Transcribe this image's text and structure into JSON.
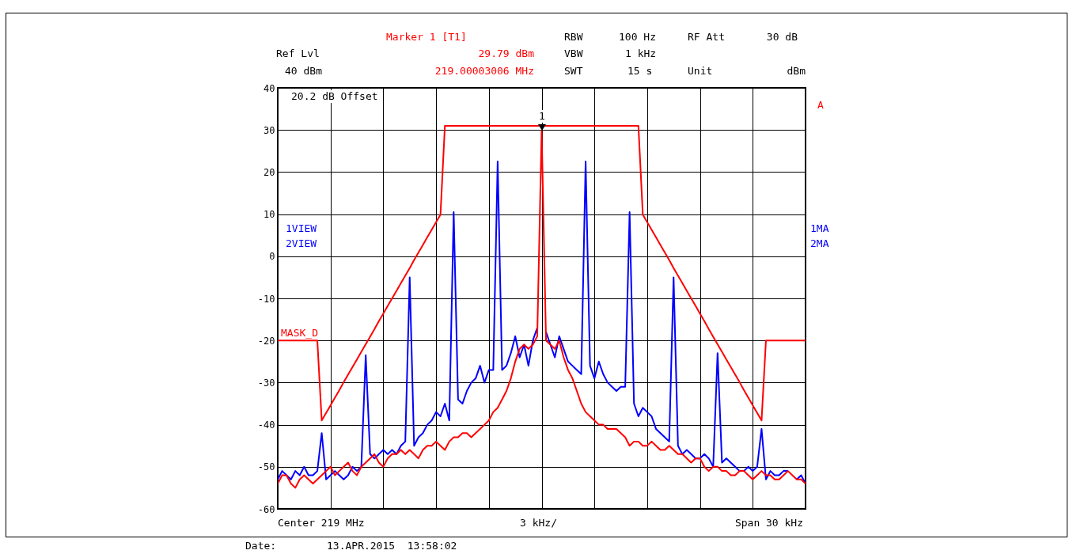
{
  "chart_data": {
    "type": "line",
    "ylim": [
      -60,
      40
    ],
    "categories": [
      null,
      null,
      null,
      null,
      null,
      null,
      null,
      null,
      null,
      null,
      null,
      null,
      null,
      null,
      null,
      null,
      null,
      null,
      null,
      null,
      null,
      null,
      null,
      null,
      null,
      null,
      null,
      null,
      null,
      null,
      null,
      null,
      null,
      null,
      null,
      null,
      null,
      null,
      null,
      null,
      null,
      null,
      null,
      null,
      null,
      null,
      null,
      null,
      null,
      null,
      null,
      null,
      null,
      null,
      null,
      null,
      null,
      null,
      null,
      null,
      null,
      null,
      null,
      null,
      null,
      null,
      null,
      null,
      null,
      null,
      null,
      null,
      null,
      null,
      null,
      null,
      null,
      null,
      null,
      null,
      null,
      null,
      null,
      null,
      null,
      null,
      null,
      null,
      null,
      null,
      null,
      null,
      null,
      null,
      null,
      null,
      null,
      null,
      null,
      null,
      null,
      null,
      null,
      null,
      null,
      null,
      null,
      null,
      null,
      null,
      null,
      null,
      null,
      null,
      null,
      null,
      null,
      null,
      null,
      null,
      null
    ],
    "yticks": [
      -60,
      -50,
      -40,
      -30,
      -20,
      -10,
      0,
      10,
      20,
      30,
      40
    ],
    "tick_labels": "y",
    "grid": true,
    "series": [
      {
        "color": "#0000ff",
        "values": [
          -53,
          -51,
          -52,
          -53,
          -51,
          -52,
          -50,
          -52,
          -52,
          -51,
          -42,
          -53,
          -52,
          -51,
          -52,
          -53,
          -52,
          -50,
          -51,
          -50,
          -23.5,
          -47,
          -48,
          -47,
          -46,
          -47,
          -46,
          -47,
          -45,
          -44,
          -5,
          -45,
          -43,
          -42,
          -40,
          -39,
          -37,
          -38,
          -35,
          -39,
          10.5,
          -34,
          -35,
          -32,
          -30,
          -29,
          -26,
          -30,
          -27,
          -27,
          22.5,
          -27,
          -26,
          -23,
          -19,
          -24,
          -21,
          -26,
          -20,
          -17,
          null,
          -18,
          -21,
          -24,
          -19,
          -22,
          -25,
          -26,
          -27,
          -28,
          22.5,
          -26,
          -29,
          -25,
          -28,
          -30,
          -31,
          -32,
          -31,
          -31,
          10.5,
          -35,
          -38,
          -36,
          -37,
          -38,
          -41,
          -42,
          -43,
          -44,
          -5,
          -45,
          -47,
          -46,
          -47,
          -48,
          -48,
          -47,
          -48,
          -50,
          -23,
          -49,
          -48,
          -49,
          -50,
          -51,
          -51,
          -50,
          -51,
          -50,
          -41,
          -53,
          -51,
          -52,
          -52,
          -51,
          -51,
          null,
          -53,
          -52,
          -54
        ]
      },
      {
        "color": "#ff0000",
        "values": [
          -54,
          -52,
          -52,
          -54,
          -55,
          -53,
          -52,
          -53,
          -54,
          -53,
          -52,
          -51,
          -50,
          -52,
          -51,
          -50,
          -49,
          -51,
          -52,
          -50,
          -49,
          -48,
          -47,
          -49,
          -50,
          -48,
          -47,
          -47,
          -46,
          -47,
          -46,
          -47,
          -48,
          -46,
          -45,
          -45,
          -44,
          -45,
          -46,
          -44,
          -43,
          -43,
          -42,
          -42,
          -43,
          -42,
          -41,
          -40,
          -39,
          -37,
          -36,
          -34,
          -32,
          -29,
          -25,
          -22,
          -21,
          -22,
          -21,
          -19,
          29.79,
          -20,
          -21,
          -22,
          -20,
          -24,
          -27,
          -29,
          -32,
          -35,
          -37,
          -38,
          -39,
          -40,
          -40,
          -41,
          -41,
          -41,
          -42,
          -43,
          -45,
          -44,
          -44,
          -45,
          -45,
          -44,
          -45,
          -46,
          -46,
          -45,
          -46,
          -47,
          -47,
          -48,
          -49,
          -48,
          -48,
          -50,
          -51,
          -50,
          -50,
          -51,
          -51,
          -52,
          -52,
          -51,
          -51,
          -52,
          -53,
          -52,
          -51,
          -52,
          -52,
          -53,
          -53,
          -52,
          -51,
          -52,
          -53,
          -53,
          -54
        ]
      },
      {
        "name": "MASK_D",
        "color": "#ff0000",
        "values": [
          -20,
          -20,
          -20,
          -20,
          -20,
          -20,
          -20,
          -20,
          -20,
          -20,
          -39,
          -37.2,
          -35.4,
          -33.6,
          -31.8,
          -29.9,
          -28.1,
          -26.3,
          -24.5,
          -22.7,
          -20.9,
          -19.1,
          -17.3,
          -15.4,
          -13.6,
          -11.8,
          -10,
          -8.2,
          -6.4,
          -4.6,
          -2.8,
          -0.9,
          0.9,
          2.7,
          4.5,
          6.3,
          8.1,
          9.9,
          31,
          31,
          31,
          31,
          31,
          31,
          31,
          31,
          31,
          31,
          31,
          31,
          31,
          31,
          31,
          31,
          31,
          31,
          31,
          31,
          31,
          31,
          31,
          31,
          31,
          31,
          31,
          31,
          31,
          31,
          31,
          31,
          31,
          31,
          31,
          31,
          31,
          31,
          31,
          31,
          31,
          31,
          31,
          31,
          31,
          9.9,
          8.1,
          6.3,
          4.5,
          2.7,
          0.9,
          -0.9,
          -2.8,
          -4.6,
          -6.4,
          -8.2,
          -10,
          -11.8,
          -13.6,
          -15.4,
          -17.3,
          -19.1,
          -20.9,
          -22.7,
          -24.5,
          -26.3,
          -28.1,
          -29.9,
          -31.8,
          -33.6,
          -35.4,
          -37.2,
          -39,
          -20,
          -20,
          -20,
          -20,
          -20,
          -20,
          -20,
          -20,
          -20,
          -20
        ]
      }
    ],
    "annotations": [
      "Ref Lvl",
      "40 dBm",
      "Marker 1 [T1]",
      "29.79 dBm",
      "219.00003006 MHz",
      "RBW",
      "100 Hz",
      "RF Att",
      "30 dB",
      "VBW",
      "1 kHz",
      "SWT",
      "15 s",
      "Unit",
      "dBm",
      "20.2 dB Offset",
      "A",
      "1VIEW",
      "2VIEW",
      "1MA",
      "2MA",
      "Center 219 MHz",
      "3 kHz/",
      "Span 30 kHz",
      "Date:",
      "13.APR.2015  13:58:02",
      "1"
    ]
  }
}
